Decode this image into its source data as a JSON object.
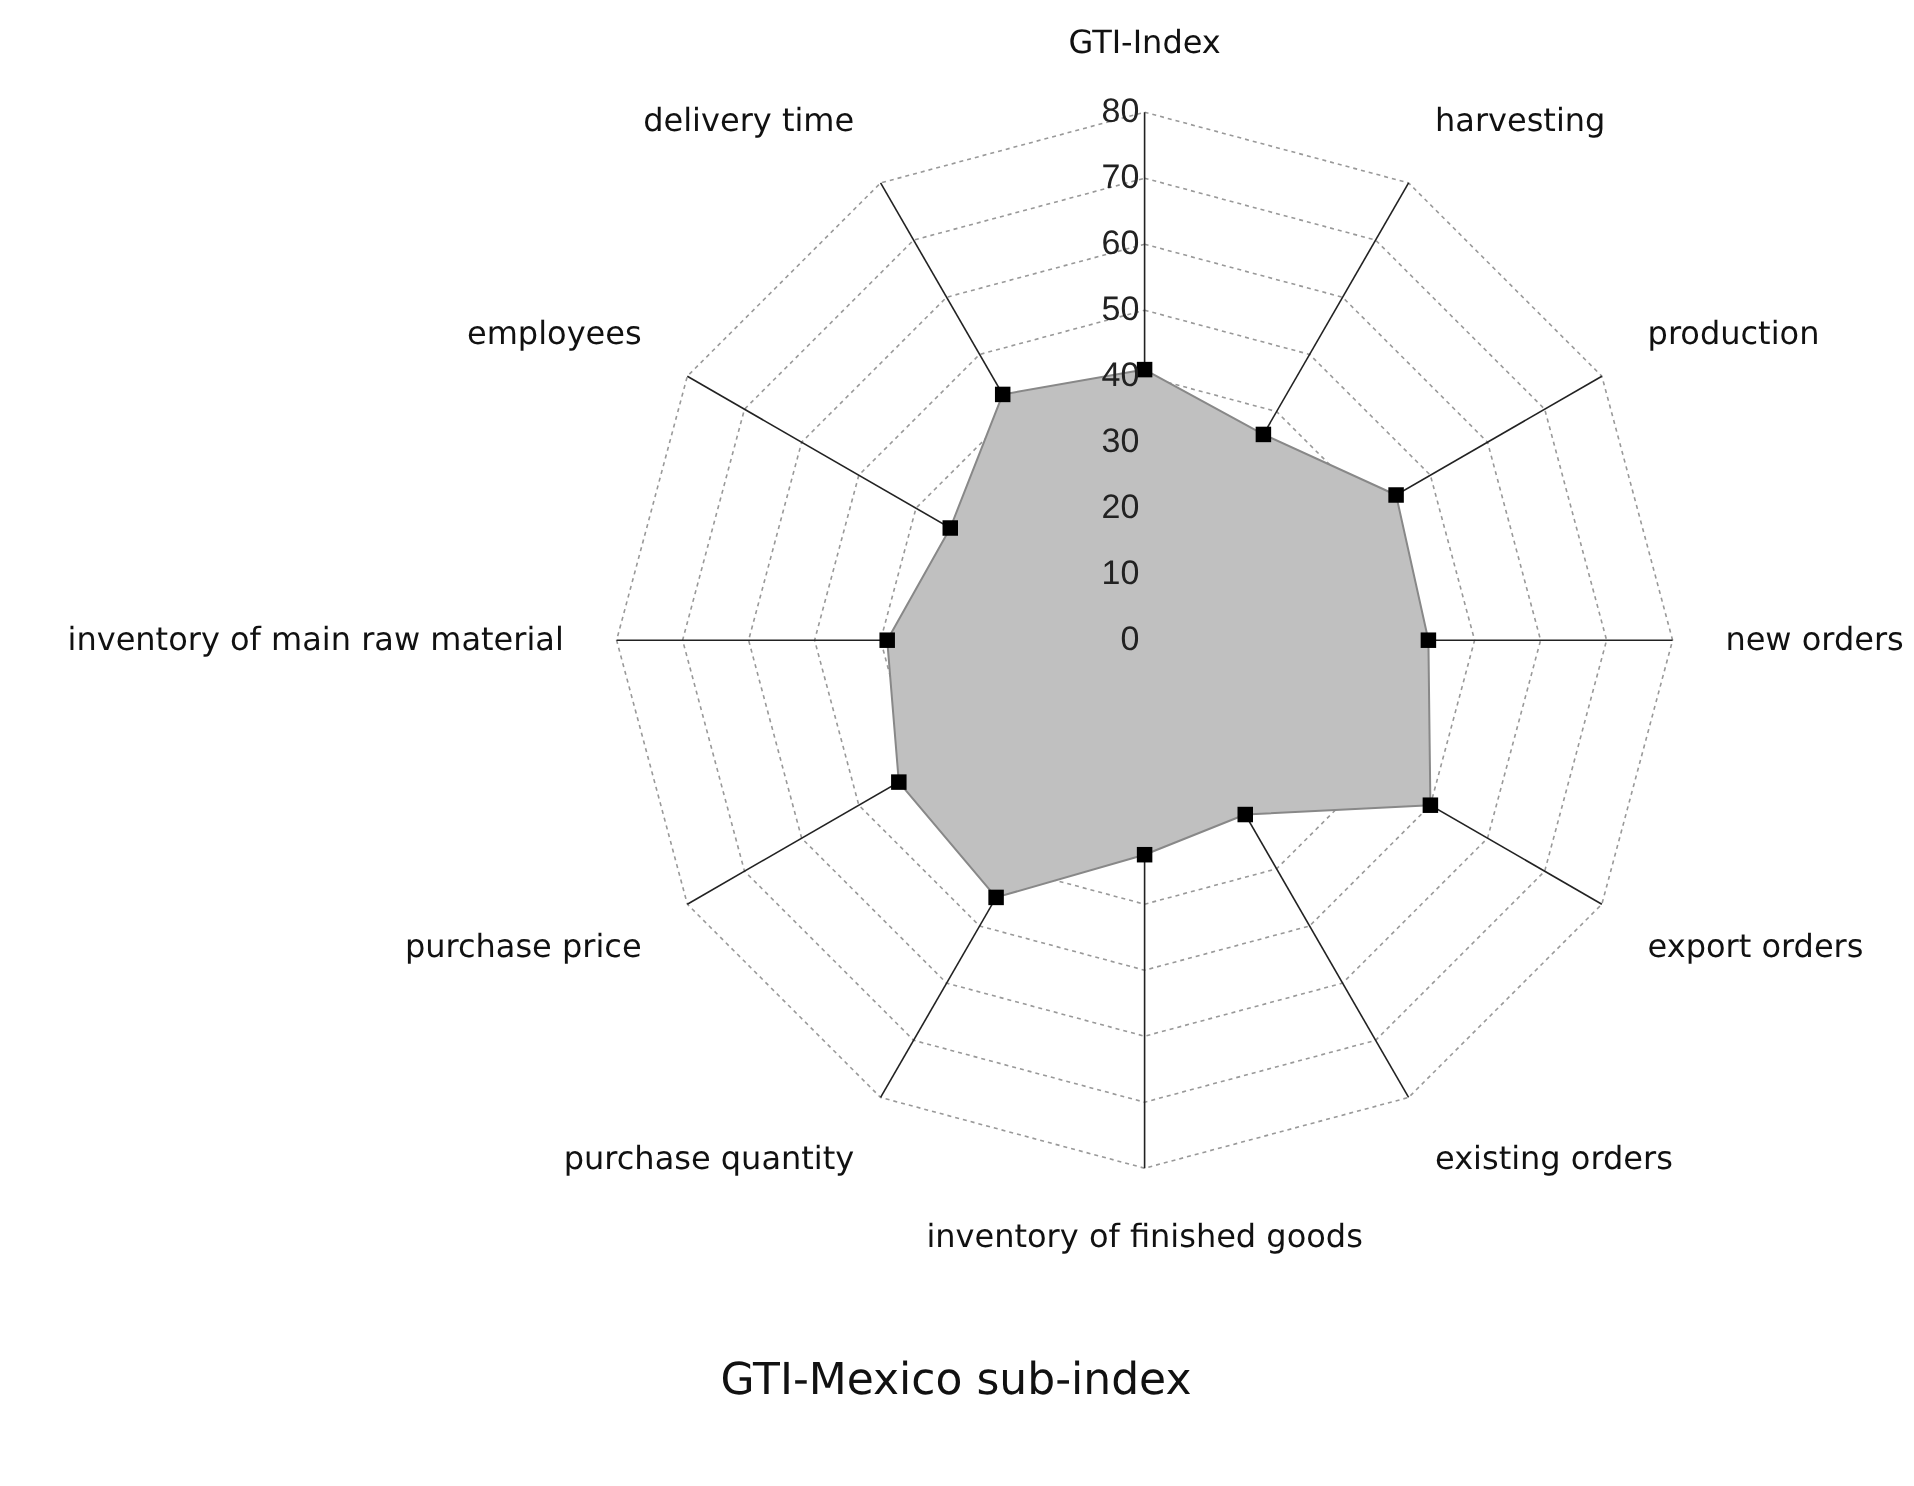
{
  "chart_data": {
    "type": "radar",
    "title": "GTI-Mexico sub-index",
    "categories": [
      "GTI-Index",
      "harvesting",
      "production",
      "new orders",
      "export orders",
      "existing orders",
      "inventory of finished goods",
      "purchase quantity",
      "purchase price",
      "inventory of main raw material",
      "employees",
      "delivery time"
    ],
    "series": [
      {
        "color": "#c0c0c0",
        "values": [
          41,
          36,
          44,
          43,
          50,
          30.5,
          32.5,
          45,
          43,
          39,
          34,
          43
        ]
      }
    ],
    "ylim": [
      0,
      80
    ],
    "yticks": [
      0,
      10,
      20,
      30,
      40,
      50,
      60,
      70,
      80
    ],
    "grid": true,
    "marker": "square"
  }
}
